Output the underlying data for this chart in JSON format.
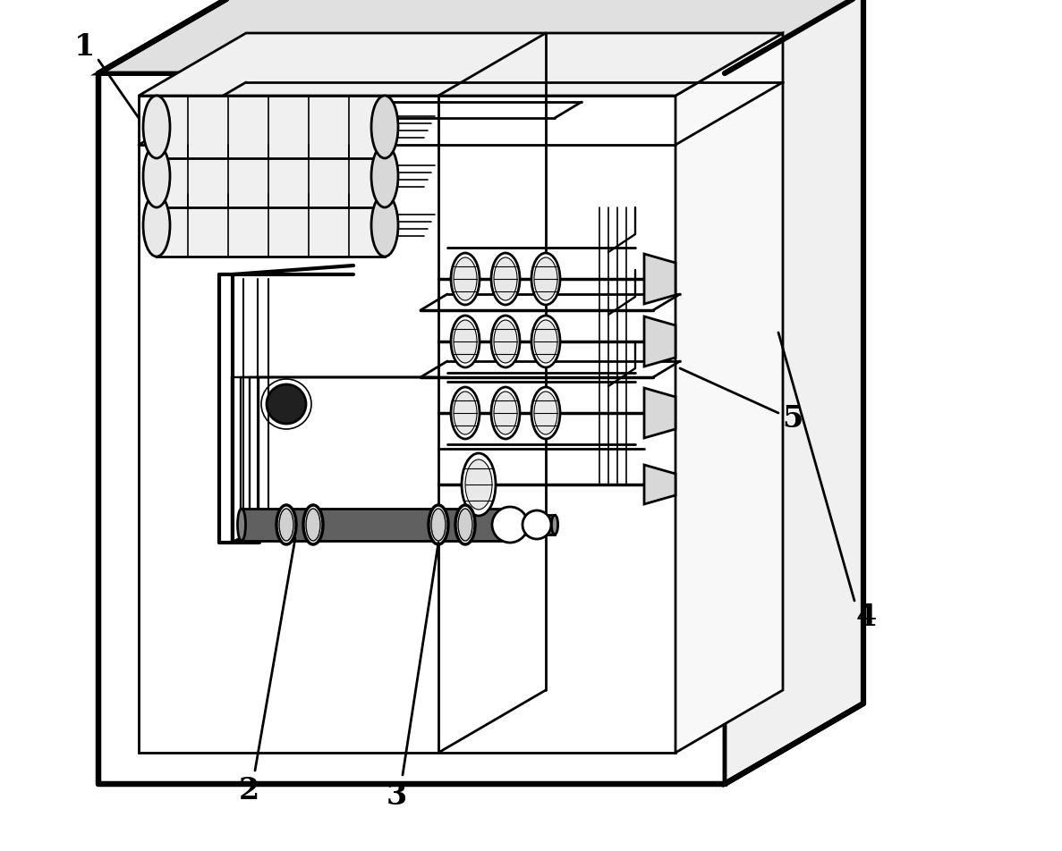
{
  "bg_color": "#ffffff",
  "line_color": "#000000",
  "lw_outer": 3.5,
  "lw_inner": 2.0,
  "lw_thin": 1.2,
  "fig_width": 11.87,
  "fig_height": 9.52,
  "label_fontsize": 24
}
